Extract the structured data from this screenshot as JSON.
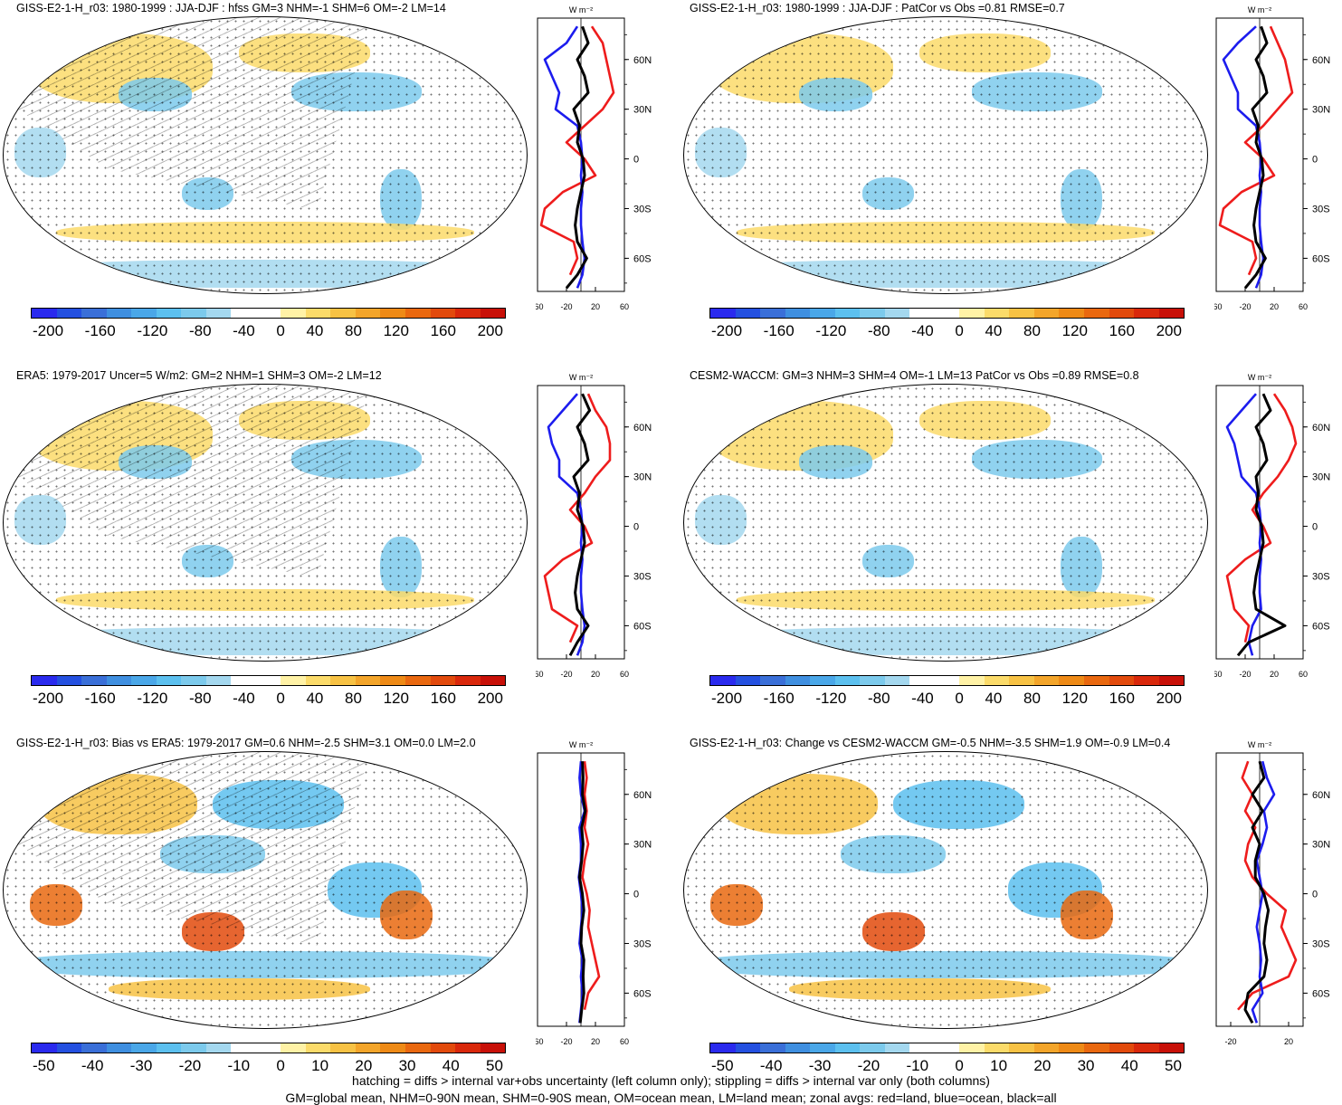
{
  "colors": {
    "scale": [
      "#2a2aee",
      "#2450e0",
      "#3a6fd8",
      "#3f8fe0",
      "#4aa7e8",
      "#5cc0ef",
      "#7ccaec",
      "#a4d8ef",
      "#ffffff",
      "#ffffff",
      "#fff2a6",
      "#fbdb6a",
      "#f7c244",
      "#f3a52a",
      "#ee8a16",
      "#e9680f",
      "#e24a0c",
      "#d9280b",
      "#c81008"
    ],
    "land_zonal": "#ee1c1c",
    "ocean_zonal": "#1c1cee",
    "all_zonal": "#000000",
    "stipple": "#000000"
  },
  "panels": [
    {
      "title": "GISS-E2-1-H_r03: 1980-1999 : JJA-DJF : hfss GM=3 NHM=-1 SHM=6 OM=-2 LM=14",
      "colorbar_labels": [
        "-200",
        "-160",
        "-120",
        "-80",
        "-40",
        "0",
        "40",
        "80",
        "120",
        "160",
        "200"
      ],
      "zonal_unit": "W m⁻²",
      "zonal_xticks": [
        "-60",
        "-20",
        "20",
        "60"
      ],
      "lat_labels": [
        "60N",
        "30N",
        "0",
        "30S",
        "60S"
      ],
      "hatched": true
    },
    {
      "title": "GISS-E2-1-H_r03: 1980-1999 : JJA-DJF : PatCor vs Obs =0.81 RMSE=0.7",
      "colorbar_labels": [
        "-200",
        "-160",
        "-120",
        "-80",
        "-40",
        "0",
        "40",
        "80",
        "120",
        "160",
        "200"
      ],
      "zonal_unit": "W m⁻²",
      "zonal_xticks": [
        "-60",
        "-20",
        "20",
        "60"
      ],
      "lat_labels": [
        "60N",
        "30N",
        "0",
        "30S",
        "60S"
      ],
      "hatched": false
    },
    {
      "title": "ERA5: 1979-2017 Uncer=5 W/m2: GM=2 NHM=1 SHM=3 OM=-2 LM=12",
      "colorbar_labels": [
        "-200",
        "-160",
        "-120",
        "-80",
        "-40",
        "0",
        "40",
        "80",
        "120",
        "160",
        "200"
      ],
      "zonal_unit": "W m⁻²",
      "zonal_xticks": [
        "-60",
        "-20",
        "20",
        "60"
      ],
      "lat_labels": [
        "60N",
        "30N",
        "0",
        "30S",
        "60S"
      ],
      "hatched": true
    },
    {
      "title": "CESM2-WACCM: GM=3 NHM=3 SHM=4 OM=-1 LM=13 PatCor vs Obs =0.89 RMSE=0.8",
      "colorbar_labels": [
        "-200",
        "-160",
        "-120",
        "-80",
        "-40",
        "0",
        "40",
        "80",
        "120",
        "160",
        "200"
      ],
      "zonal_unit": "W m⁻²",
      "zonal_xticks": [
        "-60",
        "-20",
        "20",
        "60"
      ],
      "lat_labels": [
        "60N",
        "30N",
        "0",
        "30S",
        "60S"
      ],
      "hatched": false
    },
    {
      "title": "GISS-E2-1-H_r03: Bias vs ERA5: 1979-2017 GM=0.6 NHM=-2.5 SHM=3.1 OM=0.0 LM=2.0",
      "colorbar_labels": [
        "-50",
        "-40",
        "-30",
        "-20",
        "-10",
        "0",
        "10",
        "20",
        "30",
        "40",
        "50"
      ],
      "zonal_unit": "W m⁻²",
      "zonal_xticks": [
        "-60",
        "-20",
        "20",
        "60"
      ],
      "lat_labels": [
        "60N",
        "30N",
        "0",
        "30S",
        "60S"
      ],
      "hatched": true
    },
    {
      "title": "GISS-E2-1-H_r03: Change vs CESM2-WACCM GM=-0.5 NHM=-3.5 SHM=1.9 OM=-0.9 LM=0.4",
      "colorbar_labels": [
        "-50",
        "-40",
        "-30",
        "-20",
        "-10",
        "0",
        "10",
        "20",
        "30",
        "40",
        "50"
      ],
      "zonal_unit": "W m⁻²",
      "zonal_xticks": [
        "-20",
        "20"
      ],
      "lat_labels": [
        "60N",
        "30N",
        "0",
        "30S",
        "60S"
      ],
      "hatched": false
    }
  ],
  "footer": {
    "line1": "hatching = diffs > internal var+obs uncertainty (left column only); stippling = diffs > internal var only (both columns)",
    "line2": "GM=global mean, NHM=0-90N mean, SHM=0-90S mean, OM=ocean mean, LM=land mean; zonal avgs: red=land, blue=ocean, black=all"
  },
  "chart_data": [
    {
      "type": "line",
      "title": "GISS-E2-1-H_r03: 1980-1999 : JJA-DJF : hfss GM=3 NHM=-1 SHM=6 OM=-2 LM=14",
      "xlabel": "W m⁻²",
      "xlim": [
        -60,
        60
      ],
      "ylim": [
        -80,
        85
      ],
      "y": [
        80,
        70,
        60,
        50,
        40,
        30,
        20,
        10,
        0,
        -10,
        -20,
        -30,
        -40,
        -50,
        -60,
        -70,
        -78
      ],
      "series": [
        {
          "name": "land",
          "values": [
            15,
            30,
            35,
            40,
            45,
            30,
            5,
            -20,
            5,
            20,
            -25,
            -50,
            -55,
            -10,
            -5,
            -15,
            null
          ]
        },
        {
          "name": "ocean",
          "values": [
            -5,
            -20,
            -50,
            -40,
            -30,
            -35,
            -5,
            0,
            2,
            0,
            2,
            0,
            0,
            2,
            5,
            2,
            -5
          ]
        },
        {
          "name": "all",
          "values": [
            2,
            10,
            -5,
            5,
            10,
            -10,
            -2,
            -5,
            3,
            5,
            0,
            -5,
            -8,
            -5,
            8,
            -5,
            -20
          ]
        }
      ]
    },
    {
      "type": "line",
      "title": "GISS-E2-1-H_r03: 1980-1999 : JJA-DJF : PatCor vs Obs =0.81 RMSE=0.7",
      "xlabel": "W m⁻²",
      "xlim": [
        -60,
        60
      ],
      "ylim": [
        -80,
        85
      ],
      "y": [
        80,
        70,
        60,
        50,
        40,
        30,
        20,
        10,
        0,
        -10,
        -20,
        -30,
        -40,
        -50,
        -60,
        -70,
        -78
      ],
      "series": [
        {
          "name": "land",
          "values": [
            15,
            25,
            35,
            40,
            45,
            25,
            5,
            -20,
            5,
            20,
            -25,
            -50,
            -55,
            -10,
            -5,
            -15,
            null
          ]
        },
        {
          "name": "ocean",
          "values": [
            -5,
            -30,
            -50,
            -40,
            -30,
            -30,
            -5,
            0,
            2,
            0,
            2,
            0,
            0,
            2,
            5,
            2,
            -5
          ]
        },
        {
          "name": "all",
          "values": [
            2,
            10,
            -5,
            5,
            10,
            -10,
            -2,
            -5,
            3,
            5,
            0,
            -5,
            -8,
            -5,
            8,
            -5,
            -20
          ]
        }
      ]
    },
    {
      "type": "line",
      "title": "ERA5: 1979-2017 Uncer=5 W/m2: GM=2 NHM=1 SHM=3 OM=-2 LM=12",
      "xlabel": "W m⁻²",
      "xlim": [
        -60,
        60
      ],
      "ylim": [
        -80,
        85
      ],
      "y": [
        80,
        70,
        60,
        50,
        40,
        30,
        20,
        10,
        0,
        -10,
        -20,
        -30,
        -40,
        -50,
        -60,
        -70,
        -78
      ],
      "series": [
        {
          "name": "land",
          "values": [
            10,
            20,
            35,
            40,
            40,
            20,
            5,
            -15,
            5,
            15,
            -25,
            -50,
            -45,
            -40,
            -5,
            -15,
            null
          ]
        },
        {
          "name": "ocean",
          "values": [
            -5,
            -25,
            -45,
            -40,
            -30,
            -30,
            -5,
            0,
            2,
            0,
            2,
            0,
            0,
            2,
            5,
            2,
            -5
          ]
        },
        {
          "name": "all",
          "values": [
            2,
            12,
            -5,
            5,
            10,
            -10,
            -2,
            -5,
            3,
            5,
            0,
            -5,
            -8,
            -5,
            10,
            -5,
            -15
          ]
        }
      ]
    },
    {
      "type": "line",
      "title": "CESM2-WACCM: GM=3 NHM=3 SHM=4 OM=-1 LM=13 PatCor vs Obs =0.89 RMSE=0.8",
      "xlabel": "W m⁻²",
      "xlim": [
        -60,
        60
      ],
      "ylim": [
        -80,
        85
      ],
      "y": [
        80,
        70,
        60,
        50,
        40,
        30,
        20,
        10,
        0,
        -10,
        -20,
        -30,
        -40,
        -50,
        -60,
        -70,
        -78
      ],
      "series": [
        {
          "name": "land",
          "values": [
            20,
            35,
            45,
            50,
            40,
            25,
            5,
            -10,
            5,
            15,
            -20,
            -45,
            -40,
            -35,
            -15,
            -20,
            null
          ]
        },
        {
          "name": "ocean",
          "values": [
            -5,
            -25,
            -45,
            -35,
            -30,
            -25,
            -5,
            0,
            2,
            0,
            2,
            0,
            0,
            2,
            -10,
            -15,
            -10
          ]
        },
        {
          "name": "all",
          "values": [
            5,
            15,
            -5,
            5,
            10,
            -5,
            -2,
            -5,
            3,
            5,
            0,
            -5,
            -8,
            -5,
            35,
            -15,
            -30
          ]
        }
      ]
    },
    {
      "type": "line",
      "title": "GISS-E2-1-H_r03: Bias vs ERA5: 1979-2017 GM=0.6 NHM=-2.5 SHM=3.1 OM=0.0 LM=2.0",
      "xlabel": "W m⁻²",
      "xlim": [
        -60,
        60
      ],
      "ylim": [
        -80,
        85
      ],
      "y": [
        80,
        70,
        60,
        50,
        40,
        30,
        20,
        10,
        0,
        -10,
        -20,
        -30,
        -40,
        -50,
        -60,
        -70,
        -78
      ],
      "series": [
        {
          "name": "land",
          "values": [
            5,
            8,
            5,
            8,
            5,
            10,
            5,
            2,
            8,
            12,
            10,
            15,
            20,
            25,
            10,
            5,
            null
          ]
        },
        {
          "name": "ocean",
          "values": [
            0,
            -2,
            0,
            5,
            -2,
            0,
            0,
            -3,
            0,
            2,
            0,
            -2,
            2,
            0,
            2,
            0,
            -2
          ]
        },
        {
          "name": "all",
          "values": [
            2,
            3,
            2,
            6,
            1,
            3,
            1,
            -2,
            2,
            4,
            1,
            0,
            4,
            3,
            4,
            1,
            -1
          ]
        }
      ]
    },
    {
      "type": "line",
      "title": "GISS-E2-1-H_r03: Change vs CESM2-WACCM GM=-0.5 NHM=-3.5 SHM=1.9 OM=-0.9 LM=0.4",
      "xlabel": "W m⁻²",
      "xlim": [
        -30,
        30
      ],
      "ylim": [
        -80,
        85
      ],
      "y": [
        80,
        70,
        60,
        50,
        40,
        30,
        20,
        10,
        0,
        -10,
        -20,
        -30,
        -40,
        -50,
        -60,
        -70,
        -78
      ],
      "series": [
        {
          "name": "land",
          "values": [
            -8,
            -12,
            -5,
            -10,
            -3,
            -8,
            -10,
            -5,
            5,
            18,
            15,
            20,
            25,
            20,
            -5,
            -15,
            null
          ]
        },
        {
          "name": "ocean",
          "values": [
            2,
            5,
            10,
            3,
            5,
            2,
            -2,
            0,
            2,
            0,
            -2,
            0,
            1,
            0,
            2,
            -5,
            -2
          ]
        },
        {
          "name": "all",
          "values": [
            0,
            3,
            -5,
            2,
            -5,
            0,
            -3,
            -3,
            3,
            6,
            4,
            3,
            5,
            3,
            -8,
            -10,
            -5
          ]
        }
      ]
    }
  ]
}
